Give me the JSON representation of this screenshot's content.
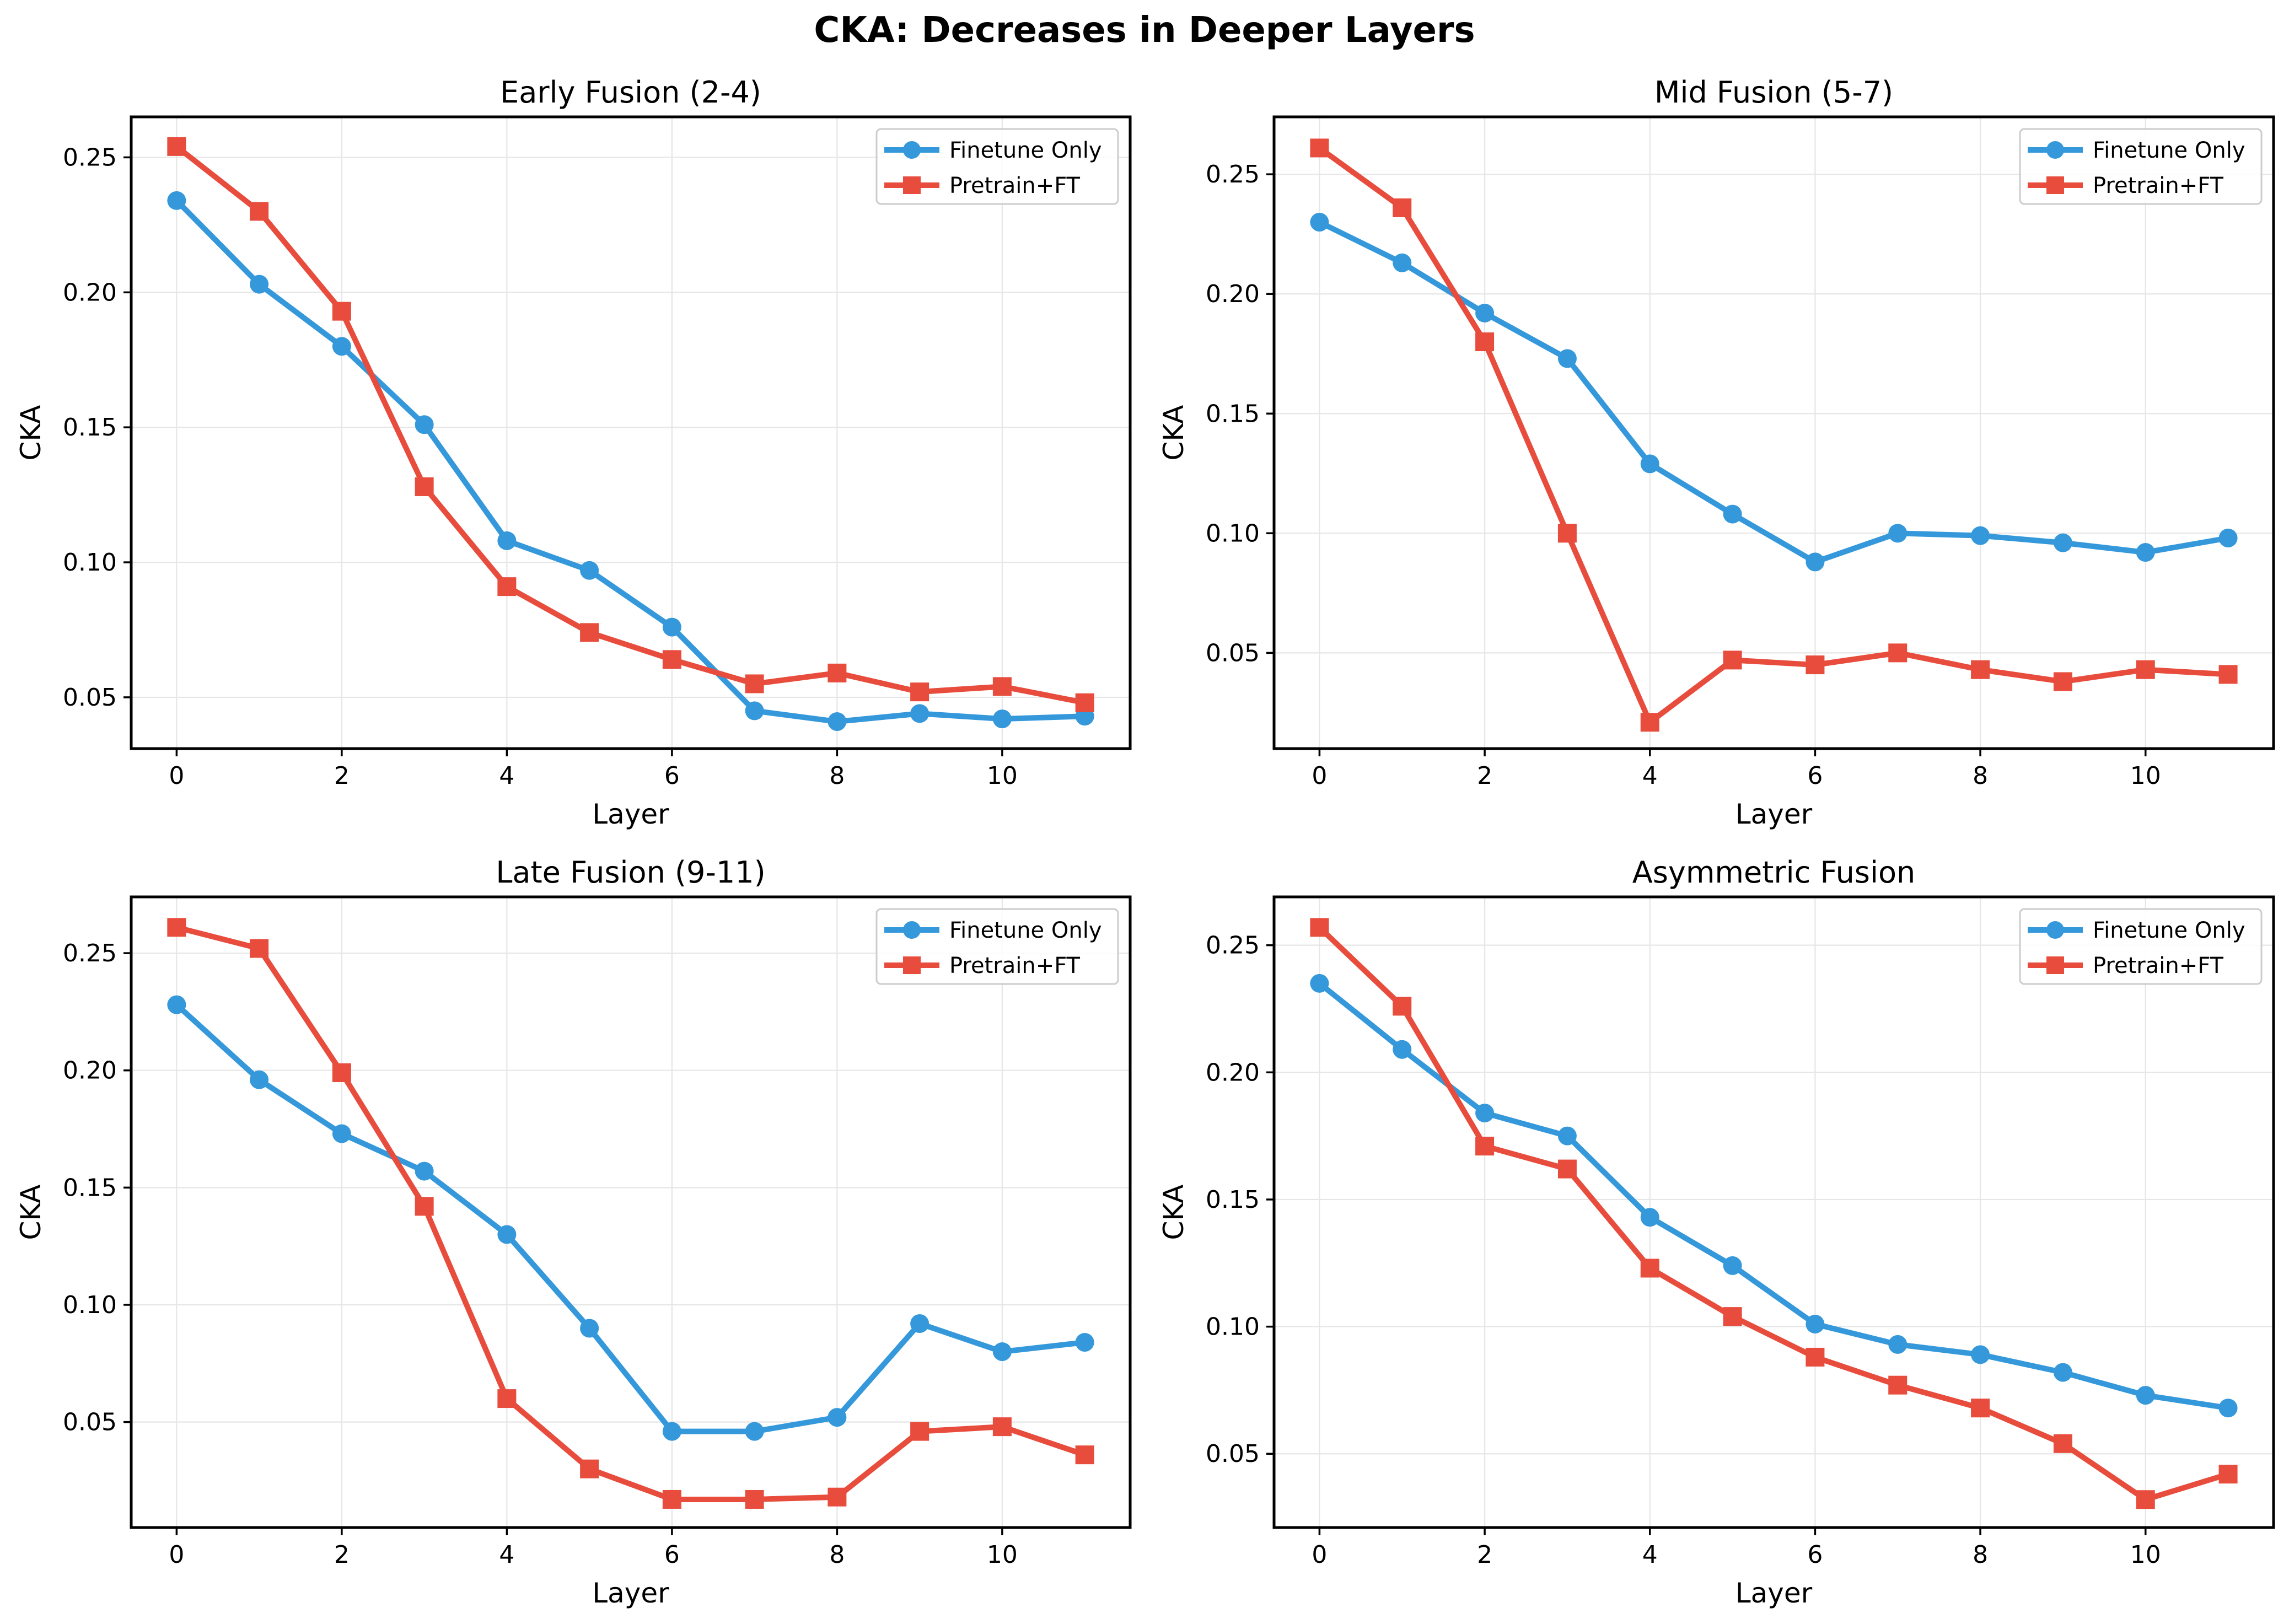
{
  "figure": {
    "title": "CKA: Decreases in Deeper Layers"
  },
  "colors": {
    "finetune": "#3498db",
    "pretrain": "#e74c3c",
    "grid": "#e6e6e6",
    "axes": "#000000"
  },
  "chart_data": [
    {
      "type": "line",
      "title": "Early Fusion (2-4)",
      "xlabel": "Layer",
      "ylabel": "CKA",
      "x": [
        0,
        1,
        2,
        3,
        4,
        5,
        6,
        7,
        8,
        9,
        10,
        11
      ],
      "xlim": [
        -0.55,
        11.55
      ],
      "ylim": [
        0.031,
        0.265
      ],
      "xticks": [
        0,
        2,
        4,
        6,
        8,
        10
      ],
      "yticks": [
        0.05,
        0.1,
        0.15,
        0.2,
        0.25
      ],
      "ytick_labels": [
        "0.05",
        "0.10",
        "0.15",
        "0.20",
        "0.25"
      ],
      "grid": true,
      "legend": "top-right",
      "series": [
        {
          "name": "Finetune Only",
          "marker": "circle",
          "values": [
            0.234,
            0.203,
            0.18,
            0.151,
            0.108,
            0.097,
            0.076,
            0.045,
            0.041,
            0.044,
            0.042,
            0.043
          ]
        },
        {
          "name": "Pretrain+FT",
          "marker": "square",
          "values": [
            0.254,
            0.23,
            0.193,
            0.128,
            0.091,
            0.074,
            0.064,
            0.055,
            0.059,
            0.052,
            0.054,
            0.048
          ]
        }
      ]
    },
    {
      "type": "line",
      "title": "Mid Fusion (5-7)",
      "xlabel": "Layer",
      "ylabel": "CKA",
      "x": [
        0,
        1,
        2,
        3,
        4,
        5,
        6,
        7,
        8,
        9,
        10,
        11
      ],
      "xlim": [
        -0.55,
        11.55
      ],
      "ylim": [
        0.01,
        0.274
      ],
      "xticks": [
        0,
        2,
        4,
        6,
        8,
        10
      ],
      "yticks": [
        0.05,
        0.1,
        0.15,
        0.2,
        0.25
      ],
      "ytick_labels": [
        "0.05",
        "0.10",
        "0.15",
        "0.20",
        "0.25"
      ],
      "grid": true,
      "legend": "top-right",
      "series": [
        {
          "name": "Finetune Only",
          "marker": "circle",
          "values": [
            0.23,
            0.213,
            0.192,
            0.173,
            0.129,
            0.108,
            0.088,
            0.1,
            0.099,
            0.096,
            0.092,
            0.098
          ]
        },
        {
          "name": "Pretrain+FT",
          "marker": "square",
          "values": [
            0.261,
            0.236,
            0.18,
            0.1,
            0.021,
            0.047,
            0.045,
            0.05,
            0.043,
            0.038,
            0.043,
            0.041
          ]
        }
      ]
    },
    {
      "type": "line",
      "title": "Late Fusion (9-11)",
      "xlabel": "Layer",
      "ylabel": "CKA",
      "x": [
        0,
        1,
        2,
        3,
        4,
        5,
        6,
        7,
        8,
        9,
        10,
        11
      ],
      "xlim": [
        -0.55,
        11.55
      ],
      "ylim": [
        0.005,
        0.274
      ],
      "xticks": [
        0,
        2,
        4,
        6,
        8,
        10
      ],
      "yticks": [
        0.05,
        0.1,
        0.15,
        0.2,
        0.25
      ],
      "ytick_labels": [
        "0.05",
        "0.10",
        "0.15",
        "0.20",
        "0.25"
      ],
      "grid": true,
      "legend": "top-right",
      "series": [
        {
          "name": "Finetune Only",
          "marker": "circle",
          "values": [
            0.228,
            0.196,
            0.173,
            0.157,
            0.13,
            0.09,
            0.046,
            0.046,
            0.052,
            0.092,
            0.08,
            0.084
          ]
        },
        {
          "name": "Pretrain+FT",
          "marker": "square",
          "values": [
            0.261,
            0.252,
            0.199,
            0.142,
            0.06,
            0.03,
            0.017,
            0.017,
            0.018,
            0.046,
            0.048,
            0.036
          ]
        }
      ]
    },
    {
      "type": "line",
      "title": "Asymmetric Fusion",
      "xlabel": "Layer",
      "ylabel": "CKA",
      "x": [
        0,
        1,
        2,
        3,
        4,
        5,
        6,
        7,
        8,
        9,
        10,
        11
      ],
      "xlim": [
        -0.55,
        11.55
      ],
      "ylim": [
        0.021,
        0.269
      ],
      "xticks": [
        0,
        2,
        4,
        6,
        8,
        10
      ],
      "yticks": [
        0.05,
        0.1,
        0.15,
        0.2,
        0.25
      ],
      "ytick_labels": [
        "0.05",
        "0.10",
        "0.15",
        "0.20",
        "0.25"
      ],
      "grid": true,
      "legend": "top-right",
      "series": [
        {
          "name": "Finetune Only",
          "marker": "circle",
          "values": [
            0.235,
            0.209,
            0.184,
            0.175,
            0.143,
            0.124,
            0.101,
            0.093,
            0.089,
            0.082,
            0.073,
            0.068
          ]
        },
        {
          "name": "Pretrain+FT",
          "marker": "square",
          "values": [
            0.257,
            0.226,
            0.171,
            0.162,
            0.123,
            0.104,
            0.088,
            0.077,
            0.068,
            0.054,
            0.032,
            0.042
          ]
        }
      ]
    }
  ]
}
